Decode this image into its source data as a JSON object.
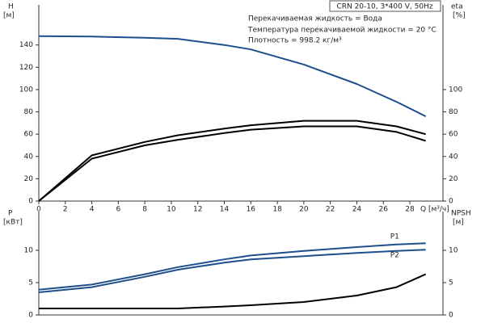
{
  "header": {
    "title": "CRN 20-10, 3*400 V, 50Hz",
    "notes": [
      "Перекачиваемая жидкость = Вода",
      "Температура перекачиваемой жидкости = 20 °C",
      "Плотность = 998.2 кг/м³"
    ]
  },
  "chart_data": [
    {
      "type": "line",
      "ylabel": "H",
      "yunit": "[м]",
      "y2label": "eta",
      "y2unit": "[%]",
      "xlabel": "Q [м³/ч]",
      "x": [
        0,
        4,
        8,
        10.5,
        14,
        16,
        20,
        24,
        27,
        29.2
      ],
      "xlim": [
        0,
        30.5
      ],
      "xticks": [
        0,
        2,
        4,
        6,
        8,
        10,
        12,
        14,
        16,
        18,
        20,
        22,
        24,
        26,
        28
      ],
      "ylim": [
        0,
        176
      ],
      "yticks": [
        0,
        20,
        40,
        60,
        80,
        100,
        120,
        140
      ],
      "y2lim": [
        0,
        176
      ],
      "y2ticks": [
        0,
        20,
        40,
        60,
        80,
        100
      ],
      "series": [
        {
          "color": "#1f4e8c",
          "values": [
            148,
            147.5,
            146.5,
            145.5,
            140,
            136,
            122.5,
            105,
            89,
            76
          ]
        },
        {
          "color": "#000000",
          "axis": "y2",
          "values": [
            0,
            41,
            53,
            59,
            65,
            68,
            72,
            72,
            67,
            60
          ]
        },
        {
          "color": "#000000",
          "axis": "y2",
          "values": [
            0,
            38,
            50,
            55,
            61,
            64,
            67,
            67,
            62,
            54
          ]
        }
      ]
    },
    {
      "type": "line",
      "ylabel": "P",
      "yunit": "[кВт]",
      "y2label": "NPSH",
      "y2unit": "[м]",
      "x": [
        0,
        4,
        8,
        10.5,
        14,
        16,
        20,
        24,
        27,
        29.2
      ],
      "xlim": [
        0,
        30.5
      ],
      "ylim": [
        0,
        16
      ],
      "yticks": [
        0,
        5,
        10
      ],
      "y2lim": [
        0,
        16
      ],
      "y2ticks": [
        0,
        5,
        10
      ],
      "series": [
        {
          "name": "P1",
          "color": "#1f4e8c",
          "values": [
            3.9,
            4.7,
            6.3,
            7.4,
            8.6,
            9.2,
            9.9,
            10.5,
            10.9,
            11.1
          ]
        },
        {
          "name": "P2",
          "color": "#1f4e8c",
          "values": [
            3.5,
            4.3,
            5.9,
            7.0,
            8.1,
            8.6,
            9.1,
            9.6,
            9.9,
            10.1
          ]
        },
        {
          "color": "#000000",
          "axis": "y2",
          "values": [
            1.0,
            1.0,
            1.0,
            1.0,
            1.3,
            1.5,
            2.0,
            3.0,
            4.3,
            6.3
          ]
        }
      ]
    }
  ]
}
